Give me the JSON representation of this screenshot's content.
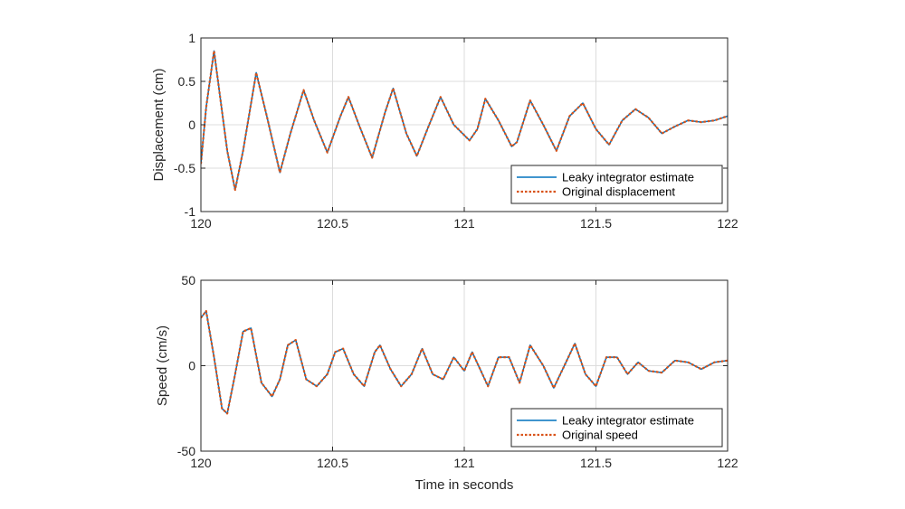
{
  "colors": {
    "estimate": "#0072BD",
    "original": "#D95319",
    "grid": "#dcdcdc",
    "axis": "#262626"
  },
  "chart_data": [
    {
      "type": "line",
      "xlabel": "",
      "ylabel": "Displacement (cm)",
      "xlim": [
        120,
        122
      ],
      "ylim": [
        -1,
        1
      ],
      "xticks": [
        "120",
        "120.5",
        "121",
        "121.5",
        "122"
      ],
      "yticks": [
        "-1",
        "-0.5",
        "0",
        "0.5",
        "1"
      ],
      "xtick_values": [
        120,
        120.5,
        121,
        121.5,
        122
      ],
      "ytick_values": [
        -1,
        -0.5,
        0,
        0.5,
        1
      ],
      "grid": true,
      "legend_position": "bottom-right",
      "series": [
        {
          "name": "Leaky integrator estimate",
          "style": "solid",
          "x": [
            120.0,
            120.02,
            120.05,
            120.1,
            120.13,
            120.16,
            120.21,
            120.25,
            120.3,
            120.34,
            120.39,
            120.43,
            120.48,
            120.53,
            120.56,
            120.6,
            120.65,
            120.7,
            120.73,
            120.78,
            120.82,
            120.86,
            120.91,
            120.96,
            121.02,
            121.05,
            121.08,
            121.13,
            121.18,
            121.2,
            121.25,
            121.3,
            121.35,
            121.4,
            121.45,
            121.5,
            121.55,
            121.6,
            121.65,
            121.7,
            121.75,
            121.8,
            121.85,
            121.9,
            121.95,
            122.0
          ],
          "y": [
            -0.45,
            0.2,
            0.85,
            -0.3,
            -0.75,
            -0.3,
            0.6,
            0.1,
            -0.55,
            -0.1,
            0.4,
            0.05,
            -0.32,
            0.1,
            0.32,
            0.0,
            -0.38,
            0.15,
            0.42,
            -0.1,
            -0.36,
            -0.05,
            0.32,
            0.0,
            -0.18,
            -0.05,
            0.3,
            0.05,
            -0.25,
            -0.2,
            0.28,
            0.0,
            -0.3,
            0.1,
            0.25,
            -0.05,
            -0.23,
            0.05,
            0.18,
            0.08,
            -0.1,
            -0.02,
            0.05,
            0.03,
            0.05,
            0.1
          ]
        },
        {
          "name": "Original displacement",
          "style": "dotted",
          "x": [
            120.0,
            120.02,
            120.05,
            120.1,
            120.13,
            120.16,
            120.21,
            120.25,
            120.3,
            120.34,
            120.39,
            120.43,
            120.48,
            120.53,
            120.56,
            120.6,
            120.65,
            120.7,
            120.73,
            120.78,
            120.82,
            120.86,
            120.91,
            120.96,
            121.02,
            121.05,
            121.08,
            121.13,
            121.18,
            121.2,
            121.25,
            121.3,
            121.35,
            121.4,
            121.45,
            121.5,
            121.55,
            121.6,
            121.65,
            121.7,
            121.75,
            121.8,
            121.85,
            121.9,
            121.95,
            122.0
          ],
          "y": [
            -0.45,
            0.2,
            0.85,
            -0.3,
            -0.75,
            -0.3,
            0.6,
            0.1,
            -0.55,
            -0.1,
            0.4,
            0.05,
            -0.32,
            0.1,
            0.32,
            0.0,
            -0.38,
            0.15,
            0.42,
            -0.1,
            -0.36,
            -0.05,
            0.32,
            0.0,
            -0.18,
            -0.05,
            0.3,
            0.05,
            -0.25,
            -0.2,
            0.28,
            0.0,
            -0.3,
            0.1,
            0.25,
            -0.05,
            -0.23,
            0.05,
            0.18,
            0.08,
            -0.1,
            -0.02,
            0.05,
            0.03,
            0.05,
            0.1
          ]
        }
      ]
    },
    {
      "type": "line",
      "xlabel": "Time in seconds",
      "ylabel": "Speed (cm/s)",
      "xlim": [
        120,
        122
      ],
      "ylim": [
        -50,
        50
      ],
      "xticks": [
        "120",
        "120.5",
        "121",
        "121.5",
        "122"
      ],
      "yticks": [
        "-50",
        "0",
        "50"
      ],
      "xtick_values": [
        120,
        120.5,
        121,
        121.5,
        122
      ],
      "ytick_values": [
        -50,
        0,
        50
      ],
      "grid": true,
      "legend_position": "bottom-right",
      "series": [
        {
          "name": "Leaky integrator estimate",
          "style": "solid",
          "x": [
            120.0,
            120.02,
            120.05,
            120.08,
            120.1,
            120.13,
            120.16,
            120.19,
            120.23,
            120.27,
            120.3,
            120.33,
            120.36,
            120.4,
            120.44,
            120.48,
            120.51,
            120.54,
            120.58,
            120.62,
            120.66,
            120.68,
            120.72,
            120.76,
            120.8,
            120.84,
            120.88,
            120.92,
            120.96,
            121.0,
            121.03,
            121.06,
            121.09,
            121.13,
            121.17,
            121.21,
            121.25,
            121.3,
            121.34,
            121.38,
            121.42,
            121.46,
            121.5,
            121.54,
            121.58,
            121.62,
            121.66,
            121.7,
            121.75,
            121.8,
            121.85,
            121.9,
            121.95,
            122.0
          ],
          "y": [
            28,
            32,
            5,
            -25,
            -28,
            -5,
            20,
            22,
            -10,
            -18,
            -8,
            12,
            15,
            -8,
            -12,
            -5,
            8,
            10,
            -5,
            -12,
            8,
            12,
            -2,
            -12,
            -5,
            10,
            -5,
            -8,
            5,
            -3,
            8,
            -2,
            -12,
            5,
            5,
            -10,
            12,
            0,
            -13,
            0,
            13,
            -5,
            -12,
            5,
            5,
            -5,
            2,
            -3,
            -4,
            3,
            2,
            -2,
            2,
            3
          ]
        },
        {
          "name": "Original speed",
          "style": "dotted",
          "x": [
            120.0,
            120.02,
            120.05,
            120.08,
            120.1,
            120.13,
            120.16,
            120.19,
            120.23,
            120.27,
            120.3,
            120.33,
            120.36,
            120.4,
            120.44,
            120.48,
            120.51,
            120.54,
            120.58,
            120.62,
            120.66,
            120.68,
            120.72,
            120.76,
            120.8,
            120.84,
            120.88,
            120.92,
            120.96,
            121.0,
            121.03,
            121.06,
            121.09,
            121.13,
            121.17,
            121.21,
            121.25,
            121.3,
            121.34,
            121.38,
            121.42,
            121.46,
            121.5,
            121.54,
            121.58,
            121.62,
            121.66,
            121.7,
            121.75,
            121.8,
            121.85,
            121.9,
            121.95,
            122.0
          ],
          "y": [
            28,
            32,
            5,
            -25,
            -28,
            -5,
            20,
            22,
            -10,
            -18,
            -8,
            12,
            15,
            -8,
            -12,
            -5,
            8,
            10,
            -5,
            -12,
            8,
            12,
            -2,
            -12,
            -5,
            10,
            -5,
            -8,
            5,
            -3,
            8,
            -2,
            -12,
            5,
            5,
            -10,
            12,
            0,
            -13,
            0,
            13,
            -5,
            -12,
            5,
            5,
            -5,
            2,
            -3,
            -4,
            3,
            2,
            -2,
            2,
            3
          ]
        }
      ]
    }
  ]
}
